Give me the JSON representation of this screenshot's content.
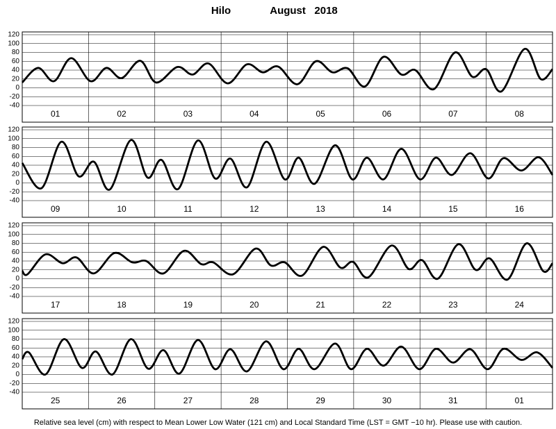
{
  "header": {
    "station": "Hilo",
    "month": "August   2018"
  },
  "footer": "Relative sea level (cm) with respect to Mean Lower Low Water (121 cm) and Local Standard Time (LST = GMT −10 hr). Please use with caution.",
  "chart_data": [
    {
      "type": "line",
      "categories": [
        "01",
        "02",
        "03",
        "04",
        "05",
        "06",
        "07",
        "08"
      ],
      "x": [
        0,
        0.24,
        0.48,
        0.74,
        1.03,
        1.27,
        1.5,
        1.78,
        2.02,
        2.34,
        2.57,
        2.81,
        3.1,
        3.39,
        3.63,
        3.86,
        4.15,
        4.43,
        4.68,
        4.91,
        5.17,
        5.45,
        5.72,
        5.93,
        6.21,
        6.53,
        6.79,
        7.0,
        7.23,
        7.58,
        7.82,
        8.0
      ],
      "values": [
        12,
        45,
        15,
        67,
        15,
        45,
        22,
        61,
        12,
        47,
        30,
        55,
        10,
        53,
        35,
        48,
        8,
        60,
        35,
        44,
        3,
        70,
        30,
        40,
        -3,
        80,
        25,
        42,
        -8,
        88,
        20,
        42
      ],
      "xlim": [
        0,
        8
      ],
      "ylim": [
        -40,
        120
      ],
      "yticks": [
        -40,
        -20,
        0,
        20,
        40,
        60,
        80,
        100,
        120
      ],
      "color": "#000000",
      "grid": true
    },
    {
      "type": "line",
      "categories": [
        "09",
        "10",
        "11",
        "12",
        "13",
        "14",
        "15",
        "16"
      ],
      "x": [
        0,
        0.29,
        0.59,
        0.85,
        1.08,
        1.32,
        1.64,
        1.89,
        2.1,
        2.35,
        2.65,
        2.91,
        3.14,
        3.39,
        3.68,
        3.96,
        4.17,
        4.41,
        4.72,
        4.98,
        5.2,
        5.45,
        5.72,
        6.0,
        6.24,
        6.48,
        6.76,
        7.03,
        7.26,
        7.53,
        7.79,
        8
      ],
      "values": [
        45,
        -12,
        93,
        15,
        48,
        -15,
        97,
        12,
        52,
        -14,
        96,
        10,
        55,
        -10,
        93,
        8,
        57,
        -2,
        85,
        8,
        57,
        8,
        77,
        8,
        57,
        18,
        67,
        10,
        56,
        28,
        58,
        18
      ],
      "xlim": [
        0,
        8
      ],
      "ylim": [
        -40,
        120
      ],
      "yticks": [
        -40,
        -20,
        0,
        20,
        40,
        60,
        80,
        100,
        120
      ],
      "color": "#000000",
      "grid": true
    },
    {
      "type": "line",
      "categories": [
        "17",
        "18",
        "19",
        "20",
        "21",
        "22",
        "23",
        "24"
      ],
      "x": [
        0,
        0.08,
        0.35,
        0.61,
        0.82,
        1.08,
        1.39,
        1.66,
        1.87,
        2.13,
        2.44,
        2.7,
        2.88,
        3.18,
        3.52,
        3.75,
        3.96,
        4.22,
        4.54,
        4.8,
        4.99,
        5.22,
        5.57,
        5.83,
        6.03,
        6.27,
        6.58,
        6.84,
        7.05,
        7.32,
        7.61,
        7.86,
        8
      ],
      "values": [
        18,
        10,
        55,
        35,
        48,
        12,
        58,
        37,
        40,
        12,
        63,
        33,
        37,
        10,
        68,
        30,
        37,
        7,
        72,
        25,
        38,
        3,
        75,
        22,
        42,
        0,
        78,
        20,
        46,
        -2,
        80,
        17,
        35
      ],
      "xlim": [
        0,
        8
      ],
      "ylim": [
        -40,
        120
      ],
      "yticks": [
        -40,
        -20,
        0,
        20,
        40,
        60,
        80,
        100,
        120
      ],
      "color": "#000000",
      "grid": true
    },
    {
      "type": "line",
      "categories": [
        "25",
        "26",
        "27",
        "28",
        "29",
        "30",
        "31",
        "01"
      ],
      "x": [
        0,
        0.1,
        0.35,
        0.63,
        0.9,
        1.11,
        1.36,
        1.64,
        1.9,
        2.13,
        2.37,
        2.65,
        2.91,
        3.14,
        3.39,
        3.68,
        3.94,
        4.17,
        4.41,
        4.72,
        4.96,
        5.2,
        5.45,
        5.72,
        5.99,
        6.24,
        6.5,
        6.76,
        7.02,
        7.26,
        7.53,
        7.77,
        8
      ],
      "values": [
        35,
        50,
        0,
        80,
        15,
        52,
        0,
        80,
        13,
        55,
        2,
        78,
        12,
        57,
        7,
        75,
        12,
        58,
        12,
        70,
        12,
        58,
        20,
        63,
        12,
        58,
        27,
        57,
        12,
        58,
        33,
        50,
        15
      ],
      "xlim": [
        0,
        8
      ],
      "ylim": [
        -40,
        120
      ],
      "yticks": [
        -40,
        -20,
        0,
        20,
        40,
        60,
        80,
        100,
        120
      ],
      "color": "#000000",
      "grid": true
    }
  ]
}
